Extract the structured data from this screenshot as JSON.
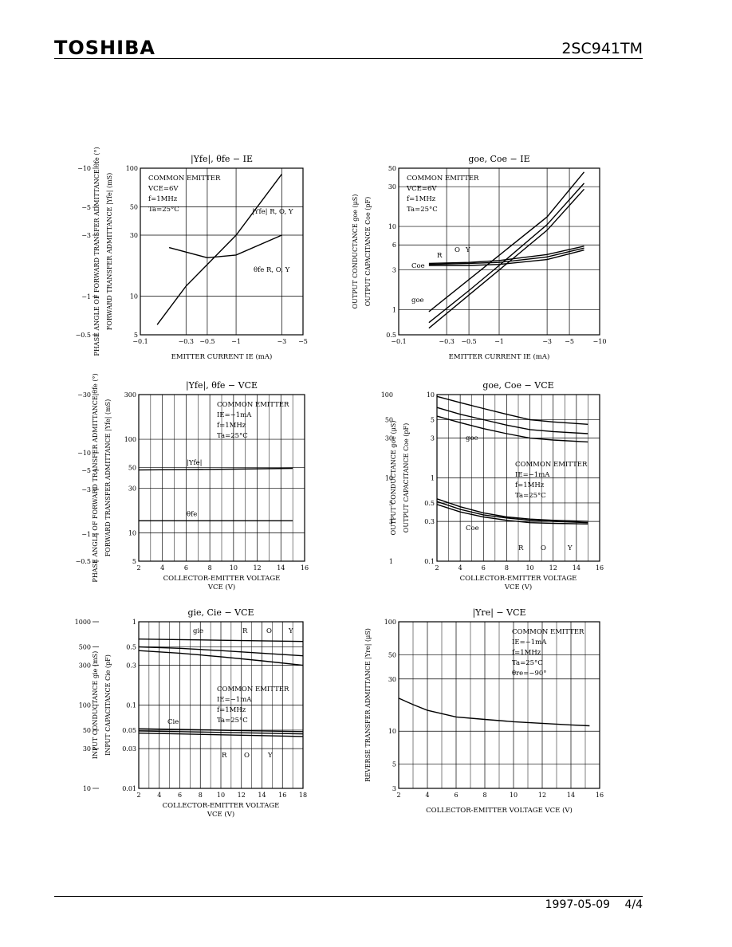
{
  "header": {
    "brand": "TOSHIBA",
    "part_number": "2SC941TM"
  },
  "footer": {
    "date": "1997-05-09",
    "page": "4/4"
  },
  "chart_data": [
    {
      "id": "yfe-ie",
      "type": "line",
      "title": "|Yfe|, θfe − IE",
      "xlabel": "EMITTER CURRENT  IE  (mA)",
      "ylabel": "FORWARD TRANSFER ADMITTANCE |Yfe| (mS)",
      "ylabel2": "PHASE ANGLE OF FORWARD TRANSFER ADMITTANCE θfe (°)",
      "xscale": "log",
      "yscale": "log",
      "xlim": [
        -0.1,
        -5
      ],
      "ylim": [
        5,
        100
      ],
      "xticks": [
        "−0.1",
        "−0.3",
        "−0.5",
        "−1",
        "−3",
        "−5"
      ],
      "yticks": [
        "5",
        "10",
        "30",
        "50",
        "100"
      ],
      "y2ticks": [
        "−10",
        "−5",
        "−3",
        "−1",
        "−0.5"
      ],
      "annotation": [
        "COMMON EMITTER",
        "VCE=6V",
        "f=1MHz",
        "Ta=25°C"
      ],
      "series": [
        {
          "name": "|Yfe| R, O, Y",
          "x": [
            -0.15,
            -0.3,
            -1,
            -3
          ],
          "y": [
            6,
            12,
            30,
            90
          ]
        },
        {
          "name": "θfe R, O, Y",
          "x": [
            -0.2,
            -0.5,
            -1,
            -3
          ],
          "y": [
            24,
            20,
            21,
            30
          ]
        }
      ]
    },
    {
      "id": "goe-ie",
      "type": "line",
      "title": "goe, Coe − IE",
      "xlabel": "EMITTER CURRENT  IE  (mA)",
      "ylabel": "OUTPUT CAPACITANCE Coe (pF)",
      "ylabel2": "OUTPUT CONDUCTANCE goe (μS)",
      "xscale": "log",
      "yscale": "log",
      "xlim": [
        -0.1,
        -10
      ],
      "ylim": [
        0.5,
        50
      ],
      "xticks": [
        "−0.1",
        "−0.3",
        "−0.5",
        "−1",
        "−3",
        "−5",
        "−10"
      ],
      "yticks": [
        "0.5",
        "1",
        "3",
        "6",
        "10",
        "30",
        "50"
      ],
      "annotation": [
        "COMMON EMITTER",
        "VCE=6V",
        "f=1MHz",
        "Ta=25°C"
      ],
      "labels": [
        "Coe",
        "goe",
        "R",
        "O",
        "Y"
      ],
      "series": [
        {
          "name": "goe R",
          "x": [
            -0.2,
            -0.5,
            -1,
            -3,
            -7
          ],
          "y": [
            0.6,
            1.5,
            3,
            9,
            28
          ]
        },
        {
          "name": "goe O",
          "x": [
            -0.2,
            -0.5,
            -1,
            -3,
            -7
          ],
          "y": [
            0.7,
            1.7,
            3.4,
            10.5,
            33
          ]
        },
        {
          "name": "goe Y",
          "x": [
            -0.2,
            -0.5,
            -1,
            -3,
            -7
          ],
          "y": [
            0.95,
            2.3,
            4.5,
            13,
            45
          ]
        },
        {
          "name": "Coe R",
          "x": [
            -0.2,
            -0.5,
            -1,
            -3,
            -7
          ],
          "y": [
            3.4,
            3.4,
            3.5,
            4.0,
            5.2
          ]
        },
        {
          "name": "Coe O",
          "x": [
            -0.2,
            -0.5,
            -1,
            -3,
            -7
          ],
          "y": [
            3.5,
            3.6,
            3.7,
            4.3,
            5.5
          ]
        },
        {
          "name": "Coe Y",
          "x": [
            -0.2,
            -0.5,
            -1,
            -3,
            -7
          ],
          "y": [
            3.6,
            3.7,
            3.9,
            4.6,
            5.8
          ]
        }
      ]
    },
    {
      "id": "yfe-vce",
      "type": "line",
      "title": "|Yfe|, θfe − VCE",
      "xlabel": "COLLECTOR-EMITTER VOLTAGE",
      "xlabel2": "VCE   (V)",
      "ylabel": "FORWARD TRANSFER ADMITTANCE |Yfe| (mS)",
      "ylabel2": "PHASE ANGLE OF FORWARD TRANSFER ADMITTANCE θfe (°)",
      "xscale": "linear",
      "yscale": "log",
      "xlim": [
        2,
        16
      ],
      "ylim": [
        5,
        300
      ],
      "xticks": [
        "2",
        "4",
        "6",
        "8",
        "10",
        "12",
        "14",
        "16"
      ],
      "yticks": [
        "5",
        "10",
        "30",
        "50",
        "100",
        "300"
      ],
      "y2ticks": [
        "−30",
        "−10",
        "−5",
        "−3",
        "−1",
        "−0.5"
      ],
      "annotation": [
        "COMMON EMITTER",
        "IE=−1mA",
        "f=1MHz",
        "Ta=25°C"
      ],
      "series": [
        {
          "name": "|Yfe|",
          "x": [
            2,
            6,
            10,
            15
          ],
          "y": [
            47,
            47.5,
            48,
            49
          ]
        },
        {
          "name": "θfe",
          "x": [
            2,
            6,
            10,
            15
          ],
          "y": [
            13.5,
            13.5,
            13.5,
            13.5
          ]
        }
      ]
    },
    {
      "id": "goe-vce",
      "type": "line",
      "title": "goe, Coe − VCE",
      "xlabel": "COLLECTOR-EMITTER VOLTAGE",
      "xlabel2": "VCE   (V)",
      "ylabel": "OUTPUT CAPACITANCE Coe (pF)",
      "ylabel2": "OUTPUT CONDUCTANCE goe (μS)",
      "xscale": "linear",
      "yscale": "log",
      "xlim": [
        2,
        16
      ],
      "ylim": [
        0.1,
        10
      ],
      "xticks": [
        "2",
        "4",
        "6",
        "8",
        "10",
        "12",
        "14",
        "16"
      ],
      "yticks": [
        "0.1",
        "0.3",
        "0.5",
        "1",
        "3",
        "5",
        "10"
      ],
      "y3ticks": [
        "1",
        "3",
        "5",
        "10",
        "30",
        "50",
        "100"
      ],
      "annotation": [
        "COMMON EMITTER",
        "IE=−1mA",
        "f=1MHz",
        "Ta=25°C"
      ],
      "labels": [
        "goe",
        "Coe",
        "R",
        "O",
        "Y"
      ],
      "series": [
        {
          "name": "goe Y",
          "x": [
            2,
            4,
            6,
            8,
            10,
            12,
            15
          ],
          "y": [
            9.5,
            8,
            6.8,
            5.8,
            5,
            4.7,
            4.4
          ]
        },
        {
          "name": "goe O",
          "x": [
            2,
            4,
            6,
            8,
            10,
            12,
            15
          ],
          "y": [
            7,
            5.8,
            5,
            4.3,
            3.8,
            3.6,
            3.4
          ]
        },
        {
          "name": "goe R",
          "x": [
            2,
            4,
            6,
            8,
            10,
            12,
            15
          ],
          "y": [
            5.5,
            4.6,
            3.9,
            3.4,
            3,
            2.85,
            2.7
          ]
        },
        {
          "name": "Coe Y",
          "x": [
            2,
            4,
            6,
            8,
            10,
            12,
            15
          ],
          "y": [
            0.56,
            0.45,
            0.38,
            0.34,
            0.32,
            0.31,
            0.3
          ]
        },
        {
          "name": "Coe O",
          "x": [
            2,
            4,
            6,
            8,
            10,
            12,
            15
          ],
          "y": [
            0.52,
            0.42,
            0.36,
            0.33,
            0.31,
            0.3,
            0.29
          ]
        },
        {
          "name": "Coe R",
          "x": [
            2,
            4,
            6,
            8,
            10,
            12,
            15
          ],
          "y": [
            0.48,
            0.39,
            0.34,
            0.31,
            0.29,
            0.285,
            0.28
          ]
        }
      ]
    },
    {
      "id": "gie-vce",
      "type": "line",
      "title": "gie, Cie − VCE",
      "xlabel": "COLLECTOR-EMITTER VOLTAGE",
      "xlabel2": "VCE   (V)",
      "ylabel": "INPUT CAPACITANCE Cie (pF)",
      "ylabel2": "INPUT CONDUCTANCE gie (mS)",
      "xscale": "linear",
      "yscale": "log",
      "xlim": [
        2,
        18
      ],
      "ylim": [
        0.01,
        1
      ],
      "xticks": [
        "2",
        "4",
        "6",
        "8",
        "10",
        "12",
        "14",
        "16",
        "18"
      ],
      "yticks": [
        "0.01",
        "0.03",
        "0.05",
        "0.1",
        "0.3",
        "0.5",
        "1"
      ],
      "y2ticks": [
        "10",
        "30",
        "50",
        "100",
        "300",
        "500",
        "1000"
      ],
      "annotation": [
        "COMMON EMITTER",
        "IE=−1mA",
        "f=1MHz",
        "Ta=25°C"
      ],
      "labels": [
        "gie",
        "Cie",
        "R",
        "O",
        "Y"
      ],
      "series": [
        {
          "name": "gie Y",
          "x": [
            2,
            6,
            10,
            14,
            18
          ],
          "y": [
            0.62,
            0.61,
            0.6,
            0.59,
            0.58
          ]
        },
        {
          "name": "gie O",
          "x": [
            2,
            6,
            10,
            14,
            18
          ],
          "y": [
            0.5,
            0.48,
            0.45,
            0.42,
            0.39
          ]
        },
        {
          "name": "gie R",
          "x": [
            2,
            6,
            10,
            14,
            18
          ],
          "y": [
            0.45,
            0.42,
            0.38,
            0.34,
            0.3
          ]
        },
        {
          "name": "Cie Y",
          "x": [
            2,
            6,
            10,
            14,
            18
          ],
          "y": [
            0.052,
            0.051,
            0.05,
            0.049,
            0.048
          ]
        },
        {
          "name": "Cie O",
          "x": [
            2,
            6,
            10,
            14,
            18
          ],
          "y": [
            0.049,
            0.048,
            0.047,
            0.046,
            0.045
          ]
        },
        {
          "name": "Cie R",
          "x": [
            2,
            6,
            10,
            14,
            18
          ],
          "y": [
            0.046,
            0.045,
            0.044,
            0.043,
            0.042
          ]
        }
      ]
    },
    {
      "id": "yre-vce",
      "type": "line",
      "title": "|Yre| − VCE",
      "xlabel": "COLLECTOR-EMITTER VOLTAGE   VCE   (V)",
      "ylabel": "REVERSE TRANSFER ADMITTANCE |Yre| (μS)",
      "xscale": "linear",
      "yscale": "log",
      "xlim": [
        2,
        16
      ],
      "ylim": [
        3,
        100
      ],
      "xticks": [
        "2",
        "4",
        "6",
        "8",
        "10",
        "12",
        "14",
        "16"
      ],
      "yticks": [
        "3",
        "5",
        "10",
        "30",
        "50",
        "100"
      ],
      "annotation": [
        "COMMON EMITTER",
        "IE=−1mA",
        "f=1MHz",
        "Ta=25°C",
        "θre=−90°"
      ],
      "series": [
        {
          "name": "|Yre|",
          "x": [
            2,
            3,
            4,
            6,
            8,
            10,
            12,
            14,
            15.3
          ],
          "y": [
            20,
            17.5,
            15.5,
            13.5,
            12.8,
            12.2,
            11.8,
            11.4,
            11.2
          ]
        }
      ]
    }
  ]
}
